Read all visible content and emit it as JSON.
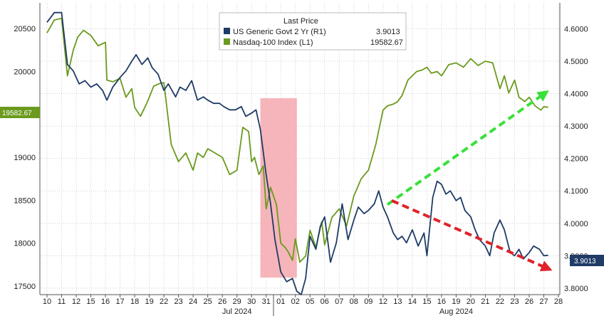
{
  "chart_data": {
    "type": "line",
    "legend": {
      "title": "Last Price",
      "placement": "top-center",
      "entries": [
        {
          "name": "US Generic Govt 2 Yr  (R1)",
          "value": "3.9013",
          "color": "#1f3b66"
        },
        {
          "name": "Nasdaq-100 Index  (L1)",
          "value": "19582.67",
          "color": "#6b9a1e"
        }
      ]
    },
    "x_ticks": [
      "10",
      "11",
      "12",
      "15",
      "16",
      "17",
      "18",
      "19",
      "22",
      "23",
      "24",
      "25",
      "26",
      "29",
      "30",
      "31",
      "01",
      "02",
      "05",
      "06",
      "07",
      "08",
      "09",
      "12",
      "13",
      "14",
      "15",
      "16",
      "19",
      "20",
      "21",
      "22",
      "23",
      "26",
      "27",
      "28"
    ],
    "months": [
      {
        "label": "Jul 2024",
        "at_tick": 13
      },
      {
        "label": "Aug 2024",
        "at_tick": 28
      }
    ],
    "month_divider_at": 15.5,
    "left_axis": {
      "ticks": [
        17500,
        18000,
        18500,
        19000,
        19500,
        20000,
        20500
      ],
      "range": [
        17400,
        20800
      ]
    },
    "right_axis": {
      "ticks": [
        "3.8000",
        "3.9000",
        "4.0000",
        "4.1000",
        "4.2000",
        "4.3000",
        "4.4000",
        "4.5000",
        "4.6000"
      ],
      "range": [
        3.78,
        4.68
      ]
    },
    "grid": true,
    "current_labels": {
      "left": "19582.67",
      "right": "3.9013"
    },
    "shaded_region": {
      "from": 14.6,
      "to": 17.1,
      "color": "#f4a8ae"
    },
    "series": [
      {
        "name": "Nasdaq-100 Index",
        "axis": "left",
        "color": "#6b9a1e",
        "x": [
          0,
          0.5,
          1,
          1.4,
          1.8,
          2.1,
          2.5,
          3.0,
          3.5,
          4.0,
          4.1,
          4.5,
          5.0,
          5.4,
          5.8,
          6.0,
          6.4,
          6.8,
          7.0,
          7.3,
          7.7,
          8.0,
          8.5,
          9.0,
          9.5,
          10.0,
          10.3,
          10.7,
          11.0,
          11.5,
          12.0,
          12.5,
          13.0,
          13.4,
          13.8,
          14.0,
          14.2,
          14.5,
          14.8,
          15.0,
          15.3,
          15.7,
          16.0,
          16.3,
          16.5,
          16.8,
          17.0,
          17.3,
          17.7,
          18.0,
          18.4,
          18.8,
          19.0,
          19.5,
          20.0,
          20.5,
          21.0,
          21.5,
          22.0,
          22.5,
          23.0,
          23.3,
          23.7,
          24.0,
          24.3,
          24.7,
          25.0,
          25.3,
          25.7,
          26.0,
          26.3,
          26.7,
          27.0,
          27.5,
          28.0,
          28.5,
          29.0,
          29.5,
          30.0,
          30.5,
          31.0,
          31.3,
          31.6,
          32.0,
          32.3,
          32.7,
          33.0,
          33.4,
          33.8,
          34.0,
          34.3
        ],
        "values": [
          20450,
          20600,
          20620,
          19950,
          20250,
          20400,
          20480,
          20420,
          20300,
          20340,
          19900,
          19880,
          19920,
          19700,
          19800,
          19580,
          19480,
          19620,
          19700,
          19830,
          19860,
          19870,
          19150,
          18950,
          19050,
          18850,
          19050,
          19000,
          19100,
          19050,
          19000,
          18800,
          18850,
          19350,
          19300,
          18950,
          19000,
          18800,
          18900,
          18400,
          18650,
          18450,
          18000,
          17950,
          17900,
          17800,
          18050,
          17780,
          17850,
          18150,
          17950,
          18250,
          17980,
          18300,
          18400,
          18200,
          18550,
          18750,
          18850,
          19150,
          19550,
          19600,
          19620,
          19650,
          19720,
          19900,
          19950,
          20000,
          20020,
          20050,
          19980,
          20000,
          19950,
          20080,
          20100,
          20050,
          20150,
          20070,
          20120,
          20100,
          19800,
          19950,
          19750,
          19900,
          19700,
          19650,
          19700,
          19600,
          19550,
          19590,
          19582.67
        ]
      },
      {
        "name": "US Generic Govt 2 Yr",
        "axis": "right",
        "color": "#1f3b66",
        "x": [
          0,
          0.5,
          1,
          1.4,
          1.8,
          2.2,
          2.6,
          3.0,
          3.4,
          3.8,
          4.1,
          4.5,
          5.0,
          5.4,
          5.8,
          6.1,
          6.5,
          6.9,
          7.2,
          7.6,
          8.0,
          8.3,
          8.8,
          9.1,
          9.5,
          9.9,
          10.3,
          10.7,
          11.0,
          11.4,
          11.8,
          12.1,
          12.5,
          12.9,
          13.3,
          13.6,
          14.0,
          14.3,
          14.6,
          15.0,
          15.3,
          15.6,
          16.0,
          16.4,
          16.8,
          17.1,
          17.4,
          17.7,
          18.0,
          18.4,
          18.7,
          19.0,
          19.4,
          19.8,
          20.2,
          20.6,
          21.0,
          21.3,
          21.7,
          22.0,
          22.4,
          22.7,
          23.0,
          23.3,
          23.7,
          24.0,
          24.3,
          24.6,
          25.0,
          25.4,
          25.8,
          26.0,
          26.4,
          26.7,
          27.0,
          27.3,
          27.6,
          28.0,
          28.3,
          28.6,
          29.0,
          29.3,
          29.6,
          30.0,
          30.3,
          30.6,
          31.0,
          31.3,
          31.7,
          32.0,
          32.3,
          32.6,
          33.0,
          33.3,
          33.7,
          34.0,
          34.3
        ],
        "values": [
          4.62,
          4.65,
          4.65,
          4.49,
          4.47,
          4.43,
          4.44,
          4.42,
          4.43,
          4.41,
          4.38,
          4.42,
          4.45,
          4.47,
          4.5,
          4.52,
          4.49,
          4.51,
          4.48,
          4.46,
          4.41,
          4.43,
          4.39,
          4.42,
          4.41,
          4.44,
          4.38,
          4.39,
          4.38,
          4.37,
          4.37,
          4.36,
          4.35,
          4.35,
          4.36,
          4.33,
          4.34,
          4.35,
          4.29,
          4.15,
          4.06,
          3.95,
          3.85,
          3.82,
          3.83,
          3.79,
          3.78,
          3.83,
          3.96,
          3.92,
          3.99,
          4.02,
          3.88,
          3.94,
          4.06,
          3.95,
          4.01,
          4.05,
          4.03,
          4.04,
          4.06,
          4.1,
          4.05,
          4.02,
          3.97,
          3.95,
          3.96,
          3.94,
          3.98,
          3.93,
          3.97,
          3.9,
          4.08,
          4.13,
          4.12,
          4.09,
          4.1,
          4.07,
          4.08,
          4.04,
          4.02,
          3.98,
          3.95,
          3.93,
          3.9,
          3.97,
          4.01,
          3.98,
          3.91,
          3.9,
          3.92,
          3.89,
          3.91,
          3.93,
          3.92,
          3.9,
          3.9013
        ]
      }
    ],
    "annotations": [
      {
        "type": "arrow",
        "from": {
          "x": 23.3,
          "y": 18450,
          "axis": "left"
        },
        "to": {
          "x": 34.1,
          "y": 19750,
          "axis": "left"
        },
        "color": "#39e03a"
      },
      {
        "type": "arrow",
        "from": {
          "x": 23.6,
          "y": 4.07,
          "axis": "right"
        },
        "to": {
          "x": 34.3,
          "y": 3.86,
          "axis": "right"
        },
        "color": "#e0222a"
      }
    ]
  }
}
